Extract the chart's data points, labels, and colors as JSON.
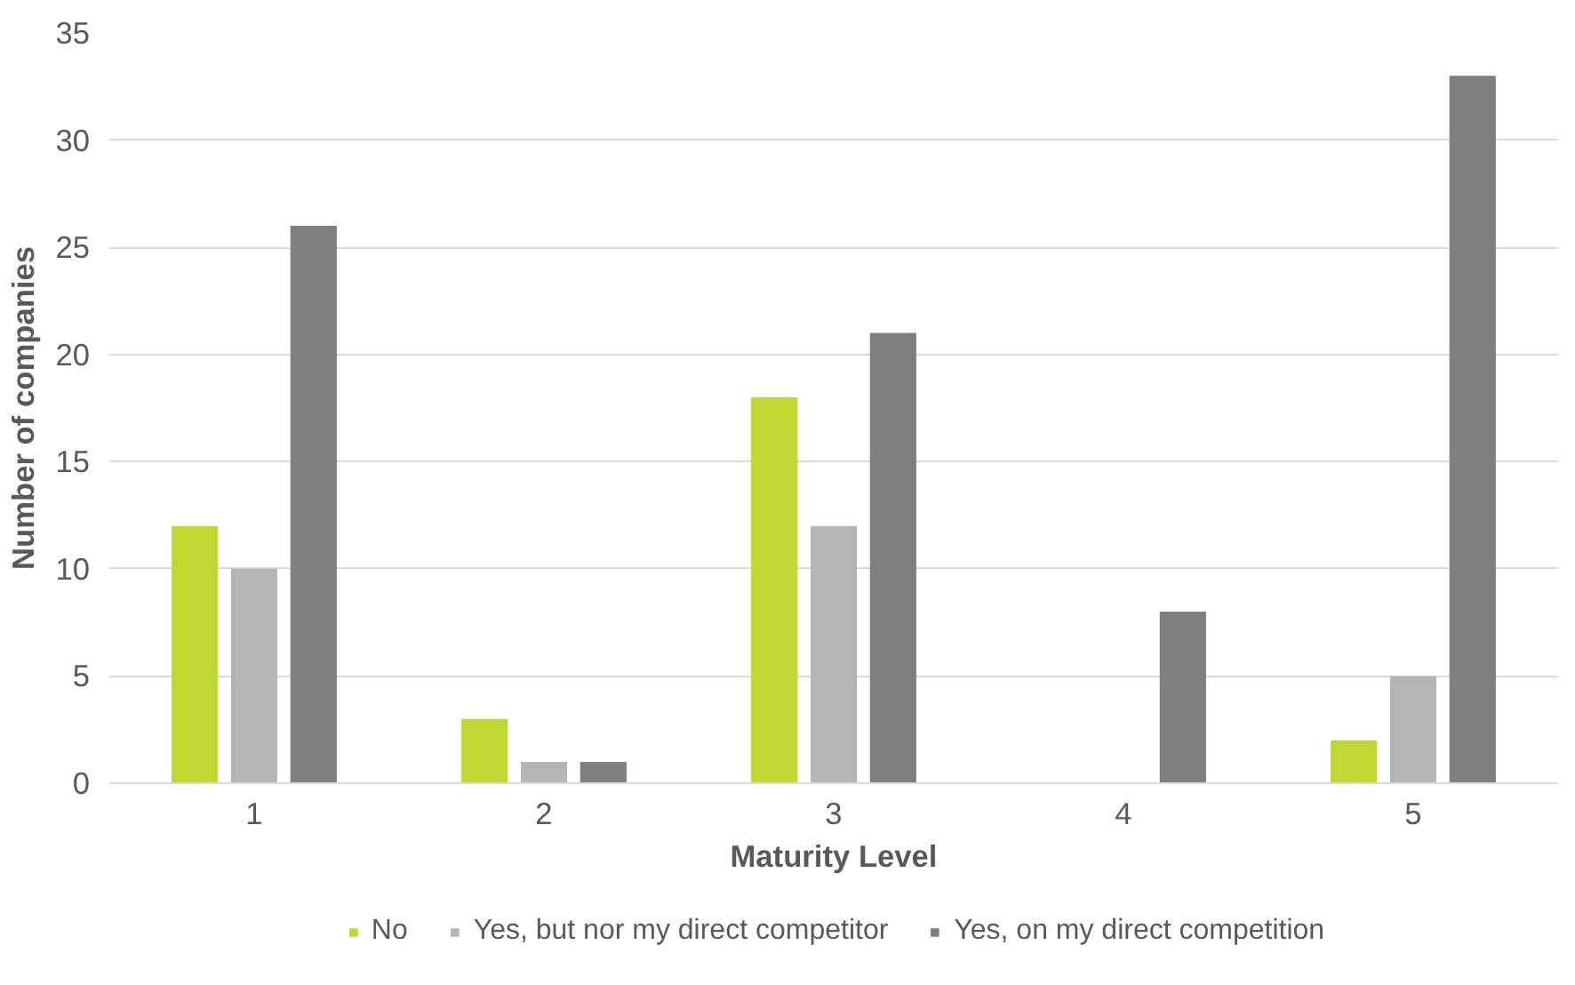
{
  "chart_data": {
    "type": "bar",
    "xlabel": "Maturity Level",
    "ylabel": "Number of companies",
    "categories": [
      "1",
      "2",
      "3",
      "4",
      "5"
    ],
    "series": [
      {
        "name": "No",
        "color": "#bfd730",
        "values": [
          12,
          3,
          18,
          0,
          2
        ]
      },
      {
        "name": "Yes, but nor my direct competitor",
        "color": "#b4b4b4",
        "values": [
          10,
          1,
          12,
          0,
          5
        ]
      },
      {
        "name": "Yes, on my direct competition",
        "color": "#7f7f7f",
        "values": [
          26,
          1,
          21,
          8,
          33
        ]
      }
    ],
    "ylim": [
      0,
      35
    ],
    "yticks": [
      0,
      5,
      10,
      15,
      20,
      25,
      30,
      35
    ],
    "grid": "y",
    "legend": "bottom"
  }
}
